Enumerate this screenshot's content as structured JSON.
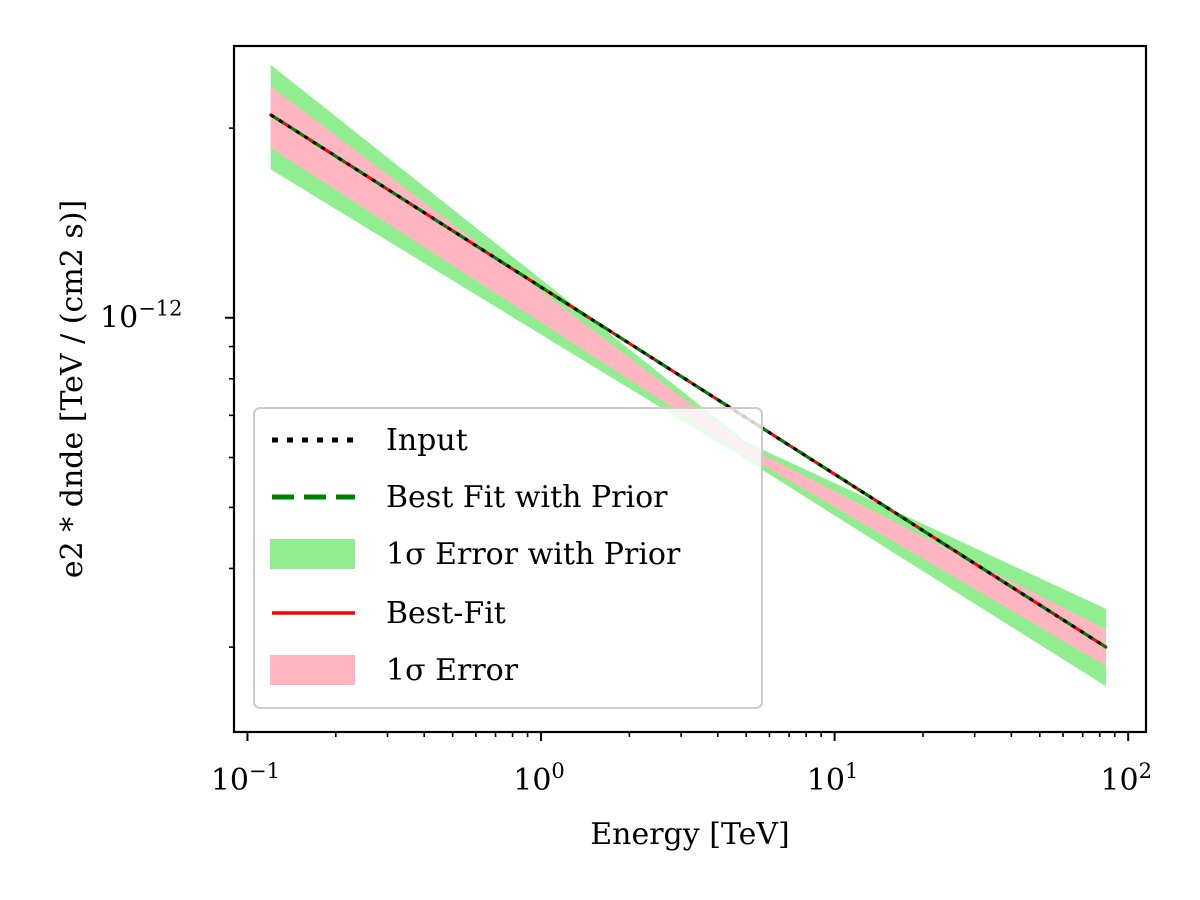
{
  "chart_data": {
    "type": "line",
    "x_scale": "log",
    "y_scale": "log",
    "xlabel": "Energy [TeV]",
    "ylabel": "e2 * dnde [TeV / (cm2 s)]",
    "xlim": [
      0.09,
      115
    ],
    "ylim": [
      2.2e-13,
      2.7e-12
    ],
    "x_ticks": [
      {
        "value": 0.1,
        "base": "10",
        "exp": "−1"
      },
      {
        "value": 1,
        "base": "10",
        "exp": "0"
      },
      {
        "value": 10,
        "base": "10",
        "exp": "1"
      },
      {
        "value": 100,
        "base": "10",
        "exp": "2"
      }
    ],
    "y_ticks": [
      {
        "value": 1e-12,
        "base": "10",
        "exp": "−12"
      }
    ],
    "legend_position": "lower-left",
    "series": [
      {
        "name": "Input",
        "kind": "line",
        "style": "dotted",
        "color": "#000000",
        "x": [
          0.12,
          84
        ],
        "y": [
          2.1e-12,
          3e-13
        ]
      },
      {
        "name": "Best Fit with Prior",
        "kind": "line",
        "style": "dashed",
        "color": "#008000",
        "x": [
          0.12,
          84
        ],
        "y": [
          2.1e-12,
          3e-13
        ]
      },
      {
        "name": "1σ Error with Prior",
        "kind": "band",
        "color": "#90ee90",
        "x": [
          0.12,
          5,
          84
        ],
        "y_lower": [
          1.72e-12,
          5.95e-13,
          2.6e-13
        ],
        "y_upper": [
          2.52e-12,
          6.35e-13,
          3.45e-13
        ]
      },
      {
        "name": "Best-Fit",
        "kind": "line",
        "style": "solid",
        "color": "#ff0000",
        "x": [
          0.12,
          84
        ],
        "y": [
          2.1e-12,
          3e-13
        ]
      },
      {
        "name": "1σ Error",
        "kind": "band",
        "color": "#ffb6c1",
        "x": [
          0.12,
          5,
          84
        ],
        "y_lower": [
          1.86e-12,
          6.05e-13,
          2.8e-13
        ],
        "y_upper": [
          2.33e-12,
          6.25e-13,
          3.2e-13
        ]
      }
    ]
  }
}
